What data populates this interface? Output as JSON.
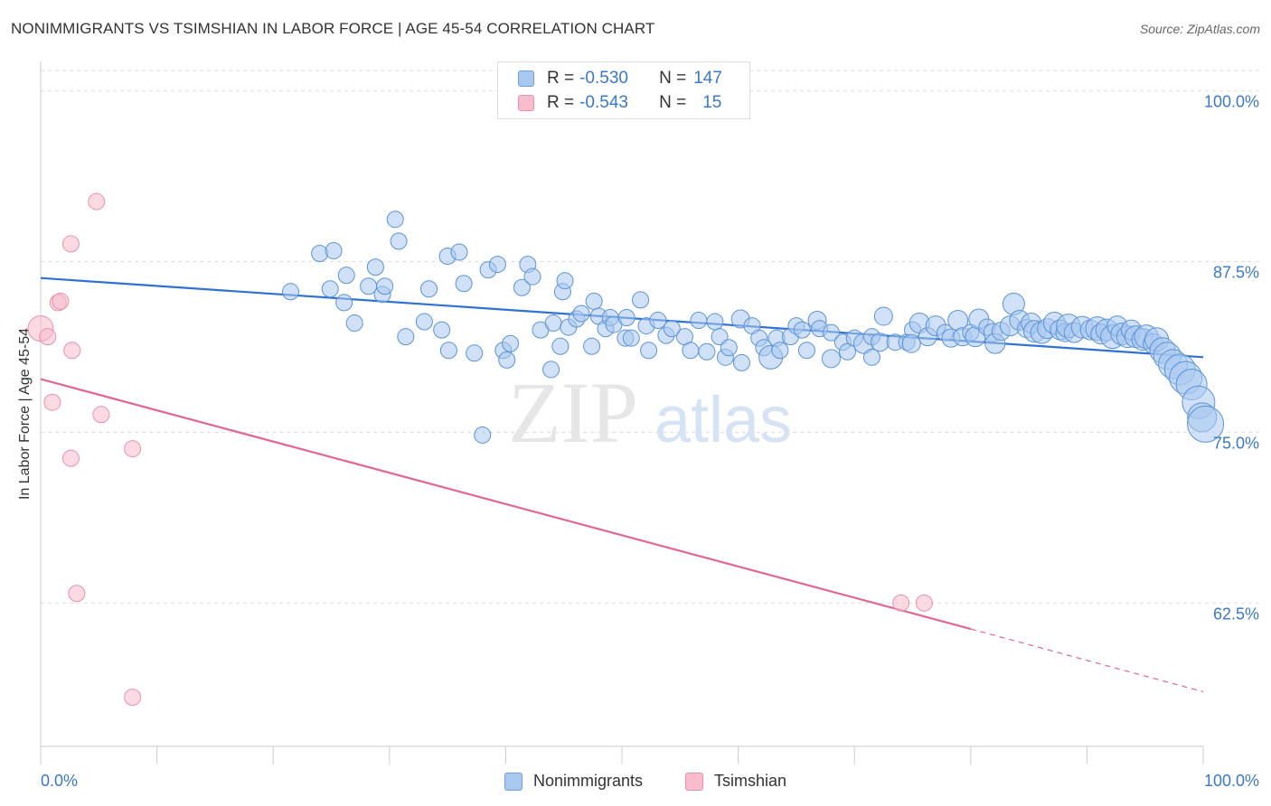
{
  "title": "NONIMMIGRANTS VS TSIMSHIAN IN LABOR FORCE | AGE 45-54 CORRELATION CHART",
  "source": "Source: ZipAtlas.com",
  "watermark": {
    "zip": "ZIP",
    "atlas": "atlas"
  },
  "legend_top": {
    "rows": [
      {
        "r_label": "R = ",
        "r_value": "-0.530",
        "n_label": "N = ",
        "n_value": "147",
        "color": "#a9c8f0",
        "border": "#6f9fdc"
      },
      {
        "r_label": "R = ",
        "r_value": "-0.543",
        "n_label": "N = ",
        "n_value": "15",
        "color": "#f8bccd",
        "border": "#e891aa"
      }
    ]
  },
  "legend_bottom": [
    {
      "label": "Nonimmigrants",
      "color": "#a9c8f0",
      "border": "#6f9fdc"
    },
    {
      "label": "Tsimshian",
      "color": "#f8bccd",
      "border": "#e891aa"
    }
  ],
  "chart_data": {
    "type": "scatter",
    "title": "NONIMMIGRANTS VS TSIMSHIAN IN LABOR FORCE | AGE 45-54 CORRELATION CHART",
    "xlabel": "",
    "ylabel": "In Labor Force | Age 45-54",
    "xlim": [
      0,
      100
    ],
    "ylim": [
      52.0,
      101.5
    ],
    "x_tick_labels": [
      "0.0%",
      "100.0%"
    ],
    "y_ticks": [
      100.0,
      87.5,
      75.0,
      62.5
    ],
    "y_tick_labels": [
      "100.0%",
      "87.5%",
      "75.0%",
      "62.5%"
    ],
    "grid": true,
    "legend_position": "top-center",
    "series": [
      {
        "name": "Nonimmigrants",
        "color": "#a9c8f0",
        "stroke": "#5b93d6",
        "trend": {
          "x": [
            0,
            100
          ],
          "y": [
            86.3,
            80.5
          ],
          "color": "#2f72d0"
        },
        "points": [
          [
            21.5,
            85.3,
            9
          ],
          [
            24.0,
            88.1,
            9
          ],
          [
            25.2,
            88.3,
            9
          ],
          [
            24.9,
            85.5,
            9
          ],
          [
            26.1,
            84.5,
            9
          ],
          [
            26.3,
            86.5,
            9
          ],
          [
            27.0,
            83.0,
            9
          ],
          [
            28.2,
            85.7,
            9
          ],
          [
            28.8,
            87.1,
            9
          ],
          [
            29.4,
            85.1,
            9
          ],
          [
            29.6,
            85.7,
            9
          ],
          [
            30.5,
            90.6,
            9
          ],
          [
            30.8,
            89.0,
            9
          ],
          [
            31.4,
            82.0,
            9
          ],
          [
            33.0,
            83.1,
            9
          ],
          [
            33.4,
            85.5,
            9
          ],
          [
            34.5,
            82.5,
            9
          ],
          [
            35.0,
            87.9,
            9
          ],
          [
            35.1,
            81.0,
            9
          ],
          [
            36.0,
            88.2,
            9
          ],
          [
            36.4,
            85.9,
            9
          ],
          [
            37.3,
            80.8,
            9
          ],
          [
            38.0,
            74.8,
            9
          ],
          [
            38.5,
            86.9,
            9
          ],
          [
            39.3,
            87.3,
            9
          ],
          [
            39.8,
            81.0,
            9
          ],
          [
            40.1,
            80.3,
            9
          ],
          [
            40.4,
            81.5,
            9
          ],
          [
            41.4,
            85.6,
            9
          ],
          [
            41.9,
            87.3,
            9
          ],
          [
            42.3,
            86.4,
            9
          ],
          [
            43.0,
            82.5,
            9
          ],
          [
            43.9,
            79.6,
            9
          ],
          [
            44.1,
            83.0,
            9
          ],
          [
            44.7,
            81.3,
            9
          ],
          [
            44.9,
            85.3,
            9
          ],
          [
            45.1,
            86.1,
            9
          ],
          [
            45.4,
            82.7,
            9
          ],
          [
            46.1,
            83.3,
            9
          ],
          [
            46.5,
            83.7,
            9
          ],
          [
            47.4,
            81.3,
            9
          ],
          [
            47.6,
            84.6,
            9
          ],
          [
            48.0,
            83.5,
            9
          ],
          [
            48.6,
            82.6,
            9
          ],
          [
            49.0,
            83.4,
            9
          ],
          [
            49.3,
            82.9,
            9
          ],
          [
            50.3,
            81.9,
            9
          ],
          [
            50.4,
            83.4,
            9
          ],
          [
            50.8,
            81.9,
            9
          ],
          [
            51.6,
            84.7,
            9
          ],
          [
            52.3,
            81.0,
            9
          ],
          [
            52.1,
            82.8,
            9
          ],
          [
            53.1,
            83.2,
            9
          ],
          [
            53.8,
            82.1,
            9
          ],
          [
            54.3,
            82.6,
            9
          ],
          [
            55.4,
            82.0,
            9
          ],
          [
            55.9,
            81.0,
            9
          ],
          [
            56.6,
            83.2,
            9
          ],
          [
            57.3,
            80.9,
            9
          ],
          [
            58.0,
            83.1,
            9
          ],
          [
            58.4,
            82.0,
            9
          ],
          [
            58.9,
            80.5,
            9
          ],
          [
            59.2,
            81.2,
            9
          ],
          [
            60.2,
            83.3,
            10
          ],
          [
            60.3,
            80.1,
            9
          ],
          [
            61.2,
            82.8,
            9
          ],
          [
            61.8,
            81.9,
            9
          ],
          [
            62.2,
            81.2,
            9
          ],
          [
            62.8,
            80.5,
            13
          ],
          [
            63.3,
            81.9,
            9
          ],
          [
            63.6,
            81.0,
            9
          ],
          [
            64.5,
            82.0,
            9
          ],
          [
            65.0,
            82.8,
            9
          ],
          [
            65.5,
            82.5,
            9
          ],
          [
            65.9,
            81.0,
            9
          ],
          [
            66.8,
            83.2,
            10
          ],
          [
            67.0,
            82.6,
            9
          ],
          [
            68.0,
            82.3,
            9
          ],
          [
            68.0,
            80.4,
            10
          ],
          [
            69.0,
            81.6,
            9
          ],
          [
            69.4,
            80.9,
            9
          ],
          [
            70.0,
            81.9,
            9
          ],
          [
            70.8,
            81.5,
            11
          ],
          [
            71.5,
            82.0,
            9
          ],
          [
            71.5,
            80.5,
            9
          ],
          [
            72.2,
            81.6,
            10
          ],
          [
            72.5,
            83.5,
            10
          ],
          [
            73.5,
            81.6,
            9
          ],
          [
            74.5,
            81.6,
            9
          ],
          [
            75.0,
            82.5,
            9
          ],
          [
            74.9,
            81.5,
            10
          ],
          [
            75.6,
            83.0,
            11
          ],
          [
            76.3,
            82.0,
            10
          ],
          [
            77.0,
            82.8,
            11
          ],
          [
            77.8,
            82.3,
            9
          ],
          [
            78.3,
            81.9,
            10
          ],
          [
            78.9,
            83.2,
            11
          ],
          [
            79.3,
            82.0,
            10
          ],
          [
            80.0,
            82.3,
            9
          ],
          [
            80.4,
            82.0,
            11
          ],
          [
            80.7,
            83.3,
            11
          ],
          [
            81.4,
            82.7,
            9
          ],
          [
            81.9,
            82.3,
            10
          ],
          [
            82.1,
            81.5,
            11
          ],
          [
            82.6,
            82.4,
            10
          ],
          [
            83.4,
            82.8,
            11
          ],
          [
            83.7,
            84.4,
            12
          ],
          [
            84.2,
            83.2,
            11
          ],
          [
            84.8,
            82.6,
            10
          ],
          [
            85.2,
            83.0,
            11
          ],
          [
            85.5,
            82.4,
            12
          ],
          [
            86.1,
            82.3,
            12
          ],
          [
            86.6,
            82.6,
            11
          ],
          [
            87.2,
            83.0,
            12
          ],
          [
            87.7,
            82.5,
            11
          ],
          [
            88.1,
            82.3,
            10
          ],
          [
            88.4,
            82.8,
            13
          ],
          [
            88.9,
            82.3,
            11
          ],
          [
            89.6,
            82.7,
            12
          ],
          [
            90.3,
            82.5,
            11
          ],
          [
            90.9,
            82.6,
            13
          ],
          [
            91.2,
            82.2,
            11
          ],
          [
            91.7,
            82.5,
            12
          ],
          [
            92.2,
            82.0,
            13
          ],
          [
            92.6,
            82.8,
            11
          ],
          [
            93.0,
            82.2,
            12
          ],
          [
            93.5,
            82.0,
            12
          ],
          [
            93.8,
            82.5,
            11
          ],
          [
            94.2,
            82.0,
            12
          ],
          [
            94.8,
            81.8,
            12
          ],
          [
            95.1,
            82.0,
            13
          ],
          [
            95.7,
            81.5,
            11
          ],
          [
            96.0,
            81.8,
            13
          ],
          [
            96.5,
            81.0,
            14
          ],
          [
            96.9,
            80.6,
            15
          ],
          [
            97.4,
            80.0,
            16
          ],
          [
            98.0,
            79.6,
            17
          ],
          [
            98.5,
            79.0,
            18
          ],
          [
            99.0,
            78.5,
            17
          ],
          [
            99.6,
            77.2,
            18
          ],
          [
            99.9,
            76.1,
            16
          ],
          [
            100.2,
            75.6,
            20
          ]
        ]
      },
      {
        "name": "Tsimshian",
        "color": "#f8bccd",
        "stroke": "#e891aa",
        "trend": {
          "x": [
            0,
            80,
            100
          ],
          "y": [
            78.9,
            60.6,
            56.0
          ],
          "color": "#e0688e",
          "solid_until": 80
        },
        "points": [
          [
            0.0,
            82.6,
            14
          ],
          [
            0.6,
            82.0,
            9
          ],
          [
            1.0,
            77.2,
            9
          ],
          [
            1.5,
            84.5,
            9
          ],
          [
            1.7,
            84.6,
            9
          ],
          [
            2.6,
            88.8,
            9
          ],
          [
            2.7,
            81.0,
            9
          ],
          [
            2.6,
            73.1,
            9
          ],
          [
            3.1,
            63.2,
            9
          ],
          [
            4.8,
            91.9,
            9
          ],
          [
            5.2,
            76.3,
            9
          ],
          [
            7.9,
            73.8,
            9
          ],
          [
            7.9,
            55.6,
            9
          ],
          [
            74.0,
            62.5,
            9
          ],
          [
            76.0,
            62.5,
            9
          ]
        ]
      }
    ]
  }
}
